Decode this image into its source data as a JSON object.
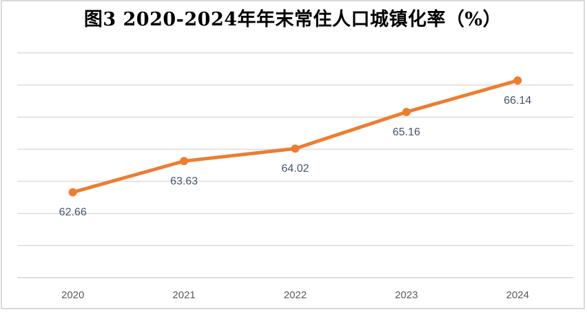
{
  "chart_data": {
    "type": "line",
    "title": "图3 2020-2024年年末常住人口城镇化率（%）",
    "categories": [
      "2020",
      "2021",
      "2022",
      "2023",
      "2024"
    ],
    "values": [
      62.66,
      63.63,
      64.02,
      65.16,
      66.14
    ],
    "data_labels": [
      "62.66",
      "63.63",
      "64.02",
      "65.16",
      "66.14"
    ],
    "xlabel": "",
    "ylabel": "",
    "ylim": [
      60,
      67
    ],
    "y_gridline_interval": 1,
    "y_axis_tick_labels_visible": false,
    "grid": "horizontal",
    "legend": "none",
    "data_label_position": "below",
    "colors": {
      "line": "#ED7D31",
      "marker": "#ED7D31",
      "gridline": "#D9D9D9",
      "axis_line": "#D4D4D4",
      "title_text": "#000000",
      "data_label_text": "#44546A",
      "axis_label_text": "#595959",
      "chart_border": "#D9D9D9",
      "background": "#FFFFFF"
    }
  }
}
